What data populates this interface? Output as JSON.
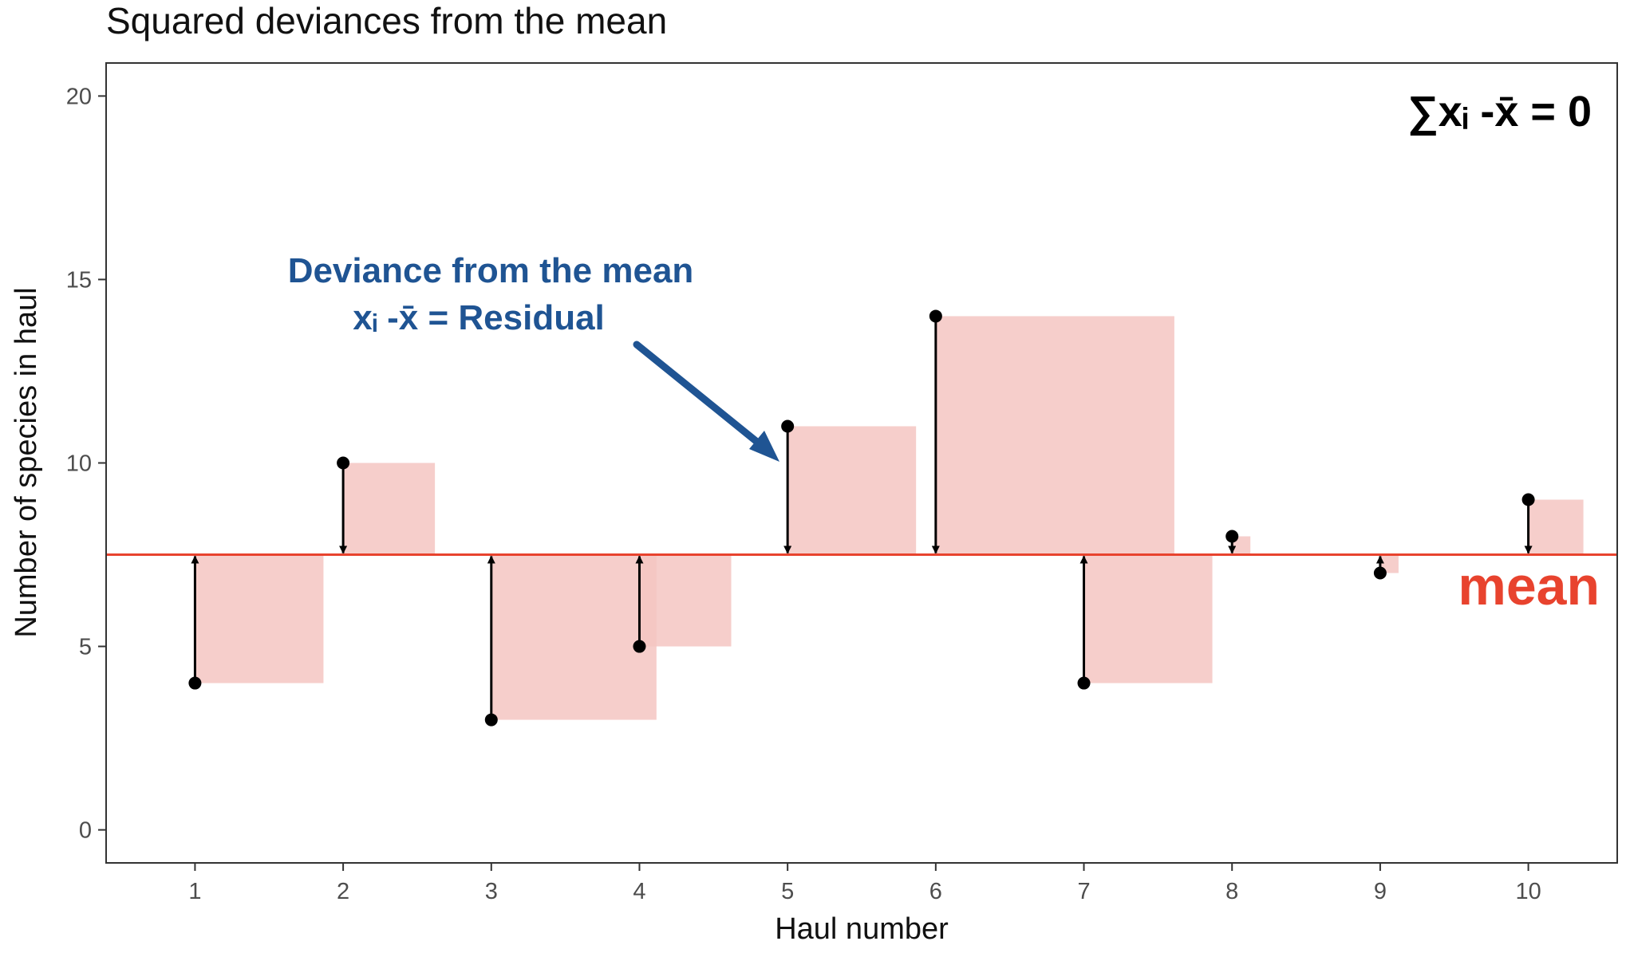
{
  "chart_data": {
    "type": "scatter",
    "title": "Squared deviances from the mean",
    "xlabel": "Haul number",
    "ylabel": "Number of species in haul",
    "x": [
      1,
      2,
      3,
      4,
      5,
      6,
      7,
      8,
      9,
      10
    ],
    "y": [
      4,
      10,
      3,
      5,
      11,
      14,
      4,
      8,
      7,
      9
    ],
    "mean": 7.5,
    "xlim": [
      0.4,
      10.6
    ],
    "ylim": [
      -0.9,
      20.9
    ],
    "x_ticks": [
      "1",
      "2",
      "3",
      "4",
      "5",
      "6",
      "7",
      "8",
      "9",
      "10"
    ],
    "y_ticks": [
      "0",
      "5",
      "10",
      "15",
      "20"
    ],
    "y_tick_values": [
      0,
      5,
      10,
      15,
      20
    ],
    "grid": false,
    "annotations": {
      "deviance_line1": "Deviance from the mean",
      "deviance_line2": "xᵢ -x̄ = Residual",
      "sum_label": "∑xᵢ -x̄ = 0",
      "mean_label": "mean"
    },
    "colors": {
      "square_fill": "#f4c6c2",
      "mean_line": "#e8432e",
      "points": "#000000",
      "annotation_blue": "#1f5493",
      "annotation_red": "#e8432e"
    }
  }
}
